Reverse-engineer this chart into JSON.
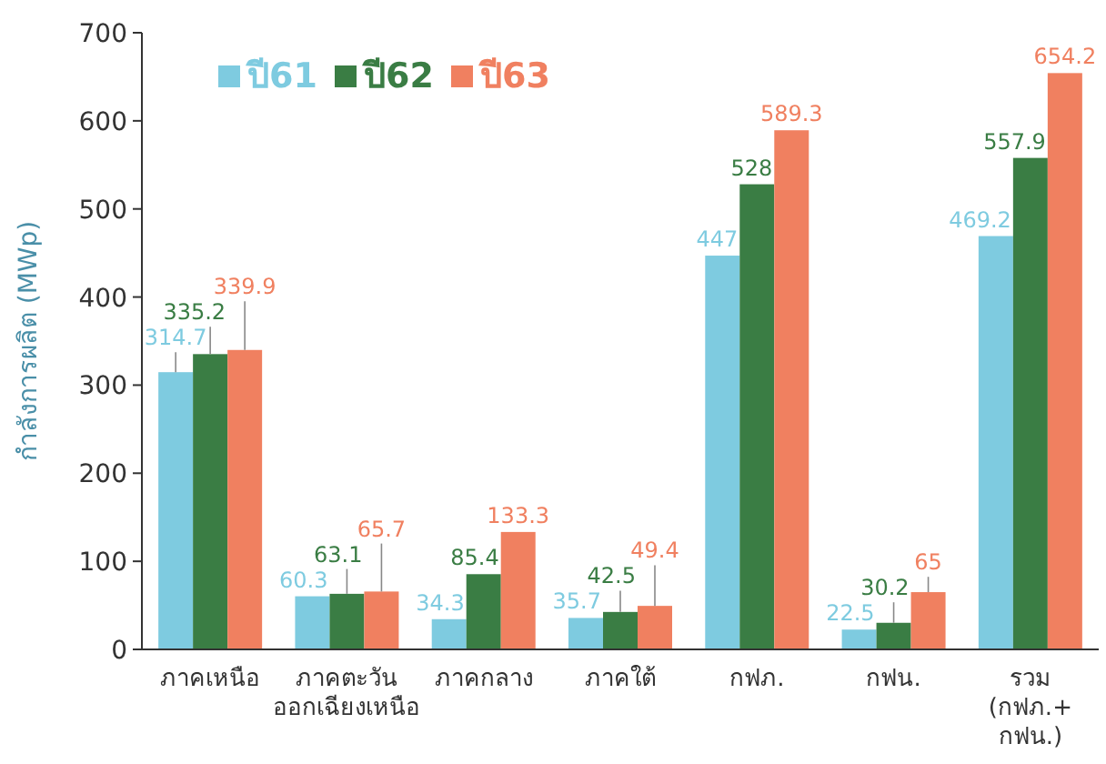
{
  "chart_data": {
    "type": "bar",
    "ylabel": "กำลังการผลิต (MWp)",
    "categories": [
      "ภาคเหนือ",
      "ภาคตะวัน\nออกเฉียงเหนือ",
      "ภาคกลาง",
      "ภาคใต้",
      "กฟภ.",
      "กฟน.",
      "รวม\n(กฟภ.+\nกฟน.)"
    ],
    "series": [
      {
        "name": "ปี61",
        "color": "#7ecbe0",
        "values": [
          314.7,
          60.3,
          34.3,
          35.7,
          447,
          22.5,
          469.2
        ]
      },
      {
        "name": "ปี62",
        "color": "#3a7d44",
        "values": [
          335.2,
          63.1,
          85.4,
          42.5,
          528,
          30.2,
          557.9
        ]
      },
      {
        "name": "ปี63",
        "color": "#f08060",
        "values": [
          339.9,
          65.7,
          133.3,
          49.4,
          589.3,
          65,
          654.2
        ]
      }
    ],
    "ylim": [
      0,
      700
    ],
    "yticks": [
      0,
      100,
      200,
      300,
      400,
      500,
      600,
      700
    ],
    "data_labels": true,
    "legend": "top left",
    "grid": false
  }
}
